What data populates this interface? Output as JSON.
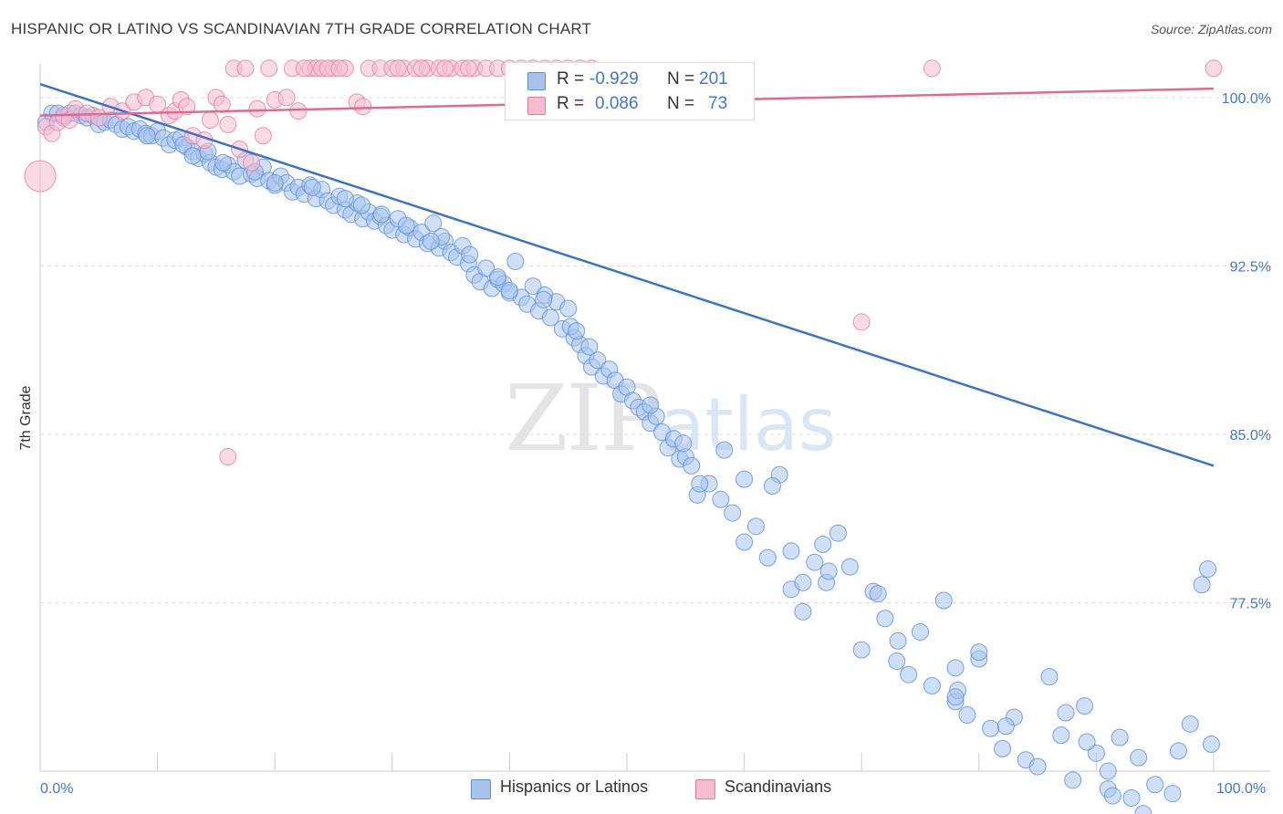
{
  "title": "HISPANIC OR LATINO VS SCANDINAVIAN 7TH GRADE CORRELATION CHART",
  "source": "Source: ZipAtlas.com",
  "watermark": {
    "zip": "ZIP",
    "atlas": "atlas"
  },
  "legend": {
    "r_label": "R =",
    "n_label": "N =",
    "series": [
      {
        "name": "Hispanics or Latinos",
        "r": "-0.929",
        "n": "201",
        "color": "#5b8fd8",
        "fill": "#a9c4ec"
      },
      {
        "name": "Scandinavians",
        "r": "0.086",
        "n": "73",
        "color": "#e87aa0",
        "fill": "#f5bdd0"
      }
    ]
  },
  "chart_data": {
    "type": "scatter",
    "title": "HISPANIC OR LATINO VS SCANDINAVIAN 7TH GRADE CORRELATION CHART",
    "ylabel": "7th Grade",
    "xlabel": "",
    "xlim": [
      0,
      100
    ],
    "ylim": [
      70,
      101.5
    ],
    "x_tick_labels": [
      {
        "value": 0,
        "label": "0.0%"
      },
      {
        "value": 100,
        "label": "100.0%"
      }
    ],
    "y_ticks": [
      {
        "value": 100,
        "label": "100.0%"
      },
      {
        "value": 92.5,
        "label": "92.5%"
      },
      {
        "value": 85,
        "label": "85.0%"
      },
      {
        "value": 77.5,
        "label": "77.5%"
      }
    ],
    "grid": true,
    "series": [
      {
        "name": "Hispanics or Latinos",
        "color": "#5b8fd8",
        "trend": {
          "x": [
            0,
            100
          ],
          "y": [
            100.6,
            83.6
          ]
        },
        "points": [
          [
            0.5,
            98.9
          ],
          [
            1,
            99.3
          ],
          [
            1.5,
            99.3
          ],
          [
            2,
            99.1
          ],
          [
            2.5,
            99.3
          ],
          [
            3,
            99.3
          ],
          [
            3.5,
            99.2
          ],
          [
            4,
            99.1
          ],
          [
            4.5,
            99.2
          ],
          [
            5,
            98.8
          ],
          [
            5.5,
            98.9
          ],
          [
            6,
            99.0
          ],
          [
            6.5,
            98.8
          ],
          [
            7,
            98.6
          ],
          [
            7.5,
            98.7
          ],
          [
            8,
            98.5
          ],
          [
            8.5,
            98.6
          ],
          [
            9,
            98.4
          ],
          [
            9.5,
            98.3
          ],
          [
            10,
            98.5
          ],
          [
            10.5,
            98.2
          ],
          [
            11,
            97.9
          ],
          [
            11.5,
            98.1
          ],
          [
            12,
            98.2
          ],
          [
            12.5,
            97.8
          ],
          [
            13,
            97.6
          ],
          [
            13.5,
            97.3
          ],
          [
            14,
            97.5
          ],
          [
            14.5,
            97.1
          ],
          [
            15,
            96.9
          ],
          [
            15.5,
            96.8
          ],
          [
            16,
            97.0
          ],
          [
            16.5,
            96.7
          ],
          [
            17,
            96.5
          ],
          [
            17.5,
            97.2
          ],
          [
            18,
            96.6
          ],
          [
            18.5,
            96.4
          ],
          [
            19,
            96.9
          ],
          [
            19.5,
            96.3
          ],
          [
            20,
            96.1
          ],
          [
            20.5,
            96.5
          ],
          [
            21,
            96.2
          ],
          [
            21.5,
            95.8
          ],
          [
            22,
            96.0
          ],
          [
            22.5,
            95.7
          ],
          [
            23,
            96.1
          ],
          [
            23.5,
            95.5
          ],
          [
            24,
            95.9
          ],
          [
            24.5,
            95.4
          ],
          [
            25,
            95.2
          ],
          [
            25.5,
            95.6
          ],
          [
            26,
            95.0
          ],
          [
            26.5,
            94.8
          ],
          [
            27,
            95.3
          ],
          [
            27.5,
            94.6
          ],
          [
            28,
            94.9
          ],
          [
            28.5,
            94.5
          ],
          [
            29,
            94.7
          ],
          [
            29.5,
            94.3
          ],
          [
            30,
            94.1
          ],
          [
            30.5,
            94.6
          ],
          [
            31,
            93.9
          ],
          [
            31.5,
            94.2
          ],
          [
            32,
            93.7
          ],
          [
            32.5,
            94.0
          ],
          [
            33,
            93.5
          ],
          [
            33.5,
            94.4
          ],
          [
            34,
            93.3
          ],
          [
            34.5,
            93.6
          ],
          [
            35,
            93.1
          ],
          [
            35.5,
            92.9
          ],
          [
            36,
            93.4
          ],
          [
            36.5,
            92.6
          ],
          [
            37,
            92.1
          ],
          [
            37.5,
            91.8
          ],
          [
            38,
            92.4
          ],
          [
            38.5,
            91.5
          ],
          [
            39,
            91.9
          ],
          [
            39.5,
            91.7
          ],
          [
            40,
            91.3
          ],
          [
            40.5,
            92.7
          ],
          [
            41,
            91.1
          ],
          [
            41.5,
            90.8
          ],
          [
            42,
            91.6
          ],
          [
            42.5,
            90.5
          ],
          [
            43,
            91.2
          ],
          [
            43.5,
            90.2
          ],
          [
            44,
            90.9
          ],
          [
            44.5,
            89.7
          ],
          [
            45,
            90.6
          ],
          [
            45.5,
            89.3
          ],
          [
            46,
            89.0
          ],
          [
            46.5,
            88.5
          ],
          [
            47,
            88.0
          ],
          [
            47.5,
            88.3
          ],
          [
            48,
            87.6
          ],
          [
            48.5,
            87.9
          ],
          [
            49,
            87.4
          ],
          [
            49.5,
            86.8
          ],
          [
            50,
            87.1
          ],
          [
            50.5,
            86.5
          ],
          [
            51,
            86.2
          ],
          [
            51.5,
            86.0
          ],
          [
            52,
            85.5
          ],
          [
            52.5,
            85.8
          ],
          [
            53,
            85.1
          ],
          [
            53.5,
            84.4
          ],
          [
            54,
            84.8
          ],
          [
            54.5,
            83.9
          ],
          [
            55,
            84.0
          ],
          [
            55.5,
            83.6
          ],
          [
            56,
            82.3
          ],
          [
            57,
            82.8
          ],
          [
            58,
            82.1
          ],
          [
            59,
            81.5
          ],
          [
            60,
            80.2
          ],
          [
            61,
            80.9
          ],
          [
            62,
            79.5
          ],
          [
            63,
            83.2
          ],
          [
            64,
            78.1
          ],
          [
            65,
            77.1
          ],
          [
            66,
            79.3
          ],
          [
            67,
            78.4
          ],
          [
            68,
            80.6
          ],
          [
            69,
            79.1
          ],
          [
            70,
            75.4
          ],
          [
            71,
            78.0
          ],
          [
            72,
            76.8
          ],
          [
            73,
            74.9
          ],
          [
            74,
            74.3
          ],
          [
            75,
            76.2
          ],
          [
            76,
            73.8
          ],
          [
            77,
            77.6
          ],
          [
            78,
            73.1
          ],
          [
            79,
            72.5
          ],
          [
            80,
            75.0
          ],
          [
            81,
            71.9
          ],
          [
            82,
            71.0
          ],
          [
            83,
            72.4
          ],
          [
            84,
            70.5
          ],
          [
            85,
            70.2
          ],
          [
            86,
            74.2
          ],
          [
            87,
            71.6
          ],
          [
            88,
            69.6
          ],
          [
            89,
            72.9
          ],
          [
            90,
            70.8
          ],
          [
            91,
            69.2
          ],
          [
            92,
            71.5
          ],
          [
            93,
            68.8
          ],
          [
            94,
            68.1
          ],
          [
            95,
            69.4
          ],
          [
            96,
            67.6
          ],
          [
            97,
            70.9
          ],
          [
            98,
            72.1
          ],
          [
            99,
            78.3
          ],
          [
            99.5,
            79.0
          ],
          [
            12.2,
            97.9
          ],
          [
            23.2,
            96.0
          ],
          [
            34.2,
            93.8
          ],
          [
            45.2,
            89.8
          ],
          [
            56.2,
            82.8
          ],
          [
            67.2,
            78.9
          ],
          [
            78.2,
            73.6
          ],
          [
            89.2,
            71.3
          ],
          [
            13.0,
            97.4
          ],
          [
            26.0,
            95.5
          ],
          [
            39.0,
            92.0
          ],
          [
            52.0,
            86.3
          ],
          [
            65.0,
            78.4
          ],
          [
            78.0,
            73.3
          ],
          [
            91.0,
            70.0
          ],
          [
            96.5,
            69.0
          ],
          [
            9.1,
            98.3
          ],
          [
            18.3,
            96.7
          ],
          [
            27.4,
            95.2
          ],
          [
            36.6,
            93.0
          ],
          [
            45.7,
            89.6
          ],
          [
            54.8,
            84.6
          ],
          [
            64.0,
            79.8
          ],
          [
            73.1,
            75.8
          ],
          [
            82.3,
            72.0
          ],
          [
            91.4,
            68.9
          ],
          [
            15.6,
            97.1
          ],
          [
            31.2,
            94.3
          ],
          [
            46.8,
            88.9
          ],
          [
            62.4,
            82.7
          ],
          [
            78.0,
            74.6
          ],
          [
            93.6,
            70.6
          ],
          [
            20.0,
            96.2
          ],
          [
            40.0,
            91.4
          ],
          [
            60.0,
            83.0
          ],
          [
            80.0,
            75.3
          ],
          [
            29.1,
            94.8
          ],
          [
            58.3,
            84.3
          ],
          [
            87.4,
            72.6
          ],
          [
            33.3,
            93.6
          ],
          [
            66.7,
            80.1
          ],
          [
            99.8,
            71.2
          ],
          [
            14.3,
            97.6
          ],
          [
            42.9,
            91.0
          ],
          [
            71.4,
            77.9
          ]
        ]
      },
      {
        "name": "Scandinavians",
        "color": "#e87aa0",
        "trend": {
          "x": [
            0,
            100
          ],
          "y": [
            99.2,
            100.4
          ]
        },
        "points": [
          [
            0,
            96.5
          ],
          [
            0.5,
            98.7
          ],
          [
            1,
            98.4
          ],
          [
            1.5,
            98.9
          ],
          [
            2,
            99.2
          ],
          [
            2.5,
            99.0
          ],
          [
            3,
            99.5
          ],
          [
            4,
            99.3
          ],
          [
            5,
            99.1
          ],
          [
            6,
            99.6
          ],
          [
            7,
            99.4
          ],
          [
            8,
            99.8
          ],
          [
            9,
            100.0
          ],
          [
            10,
            99.7
          ],
          [
            11,
            99.2
          ],
          [
            11.5,
            99.4
          ],
          [
            12,
            99.9
          ],
          [
            12.5,
            99.6
          ],
          [
            13,
            98.3
          ],
          [
            14,
            98.1
          ],
          [
            14.5,
            99.0
          ],
          [
            15,
            100.0
          ],
          [
            15.5,
            99.7
          ],
          [
            16,
            98.8
          ],
          [
            17,
            97.7
          ],
          [
            18,
            97.1
          ],
          [
            18.5,
            99.5
          ],
          [
            19,
            98.3
          ],
          [
            20,
            99.9
          ],
          [
            21,
            100.0
          ],
          [
            21.5,
            101.3
          ],
          [
            22,
            99.4
          ],
          [
            23,
            101.3
          ],
          [
            23.5,
            101.3
          ],
          [
            24,
            101.3
          ],
          [
            25,
            101.3
          ],
          [
            26,
            101.3
          ],
          [
            27,
            99.8
          ],
          [
            27.5,
            99.6
          ],
          [
            28,
            101.3
          ],
          [
            29,
            101.3
          ],
          [
            30,
            101.3
          ],
          [
            31,
            101.3
          ],
          [
            32,
            101.3
          ],
          [
            33,
            101.3
          ],
          [
            34,
            101.3
          ],
          [
            35,
            101.3
          ],
          [
            36,
            101.3
          ],
          [
            37,
            101.3
          ],
          [
            38,
            101.3
          ],
          [
            39,
            101.3
          ],
          [
            40,
            101.3
          ],
          [
            41,
            101.3
          ],
          [
            42,
            101.3
          ],
          [
            43,
            101.3
          ],
          [
            44,
            101.3
          ],
          [
            45,
            101.3
          ],
          [
            46,
            101.3
          ],
          [
            47,
            101.3
          ],
          [
            16.5,
            101.3
          ],
          [
            17.5,
            101.3
          ],
          [
            19.5,
            101.3
          ],
          [
            22.5,
            101.3
          ],
          [
            24.5,
            101.3
          ],
          [
            25.5,
            101.3
          ],
          [
            30.5,
            101.3
          ],
          [
            32.5,
            101.3
          ],
          [
            34.5,
            101.3
          ],
          [
            36.5,
            101.3
          ],
          [
            70,
            90.0
          ],
          [
            76,
            101.3
          ],
          [
            100,
            101.3
          ],
          [
            16,
            84.0
          ]
        ]
      }
    ]
  }
}
